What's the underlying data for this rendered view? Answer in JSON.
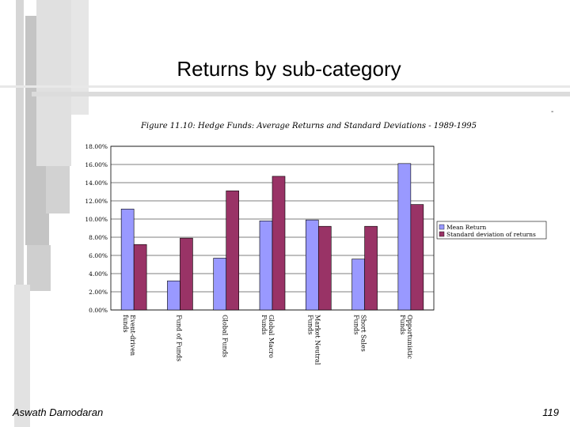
{
  "slide": {
    "title": "Returns by sub-category",
    "footer_author": "Aswath Damodaran",
    "page_number": "119",
    "corner_mark": "-"
  },
  "colors": {
    "mean": "#9999ff",
    "stdev": "#993366",
    "deco_gray": "#c8c8c8",
    "deco_gray_dark": "#b4b4b4"
  },
  "chart_data": {
    "type": "bar",
    "title": "Figure 11.10: Hedge Funds: Average Returns and Standard Deviations - 1989-1995",
    "categories": [
      "Event-driven funds",
      "Fund of Funds",
      "Global Funds",
      "Global Macro Funds",
      "Market Neutral Funds",
      "Short Sales Funds",
      "Opportunistic Funds"
    ],
    "series": [
      {
        "name": "Mean Return",
        "values": [
          11.1,
          3.2,
          5.7,
          9.8,
          9.9,
          5.6,
          16.1
        ]
      },
      {
        "name": "Standard deviation of returns",
        "values": [
          7.2,
          7.9,
          13.1,
          14.7,
          9.2,
          9.2,
          11.6
        ]
      }
    ],
    "ylim": [
      0,
      18
    ],
    "yticks": [
      "0.00%",
      "2.00%",
      "4.00%",
      "6.00%",
      "8.00%",
      "10.00%",
      "12.00%",
      "14.00%",
      "16.00%",
      "18.00%"
    ],
    "legend_position": "right",
    "grid": true
  }
}
